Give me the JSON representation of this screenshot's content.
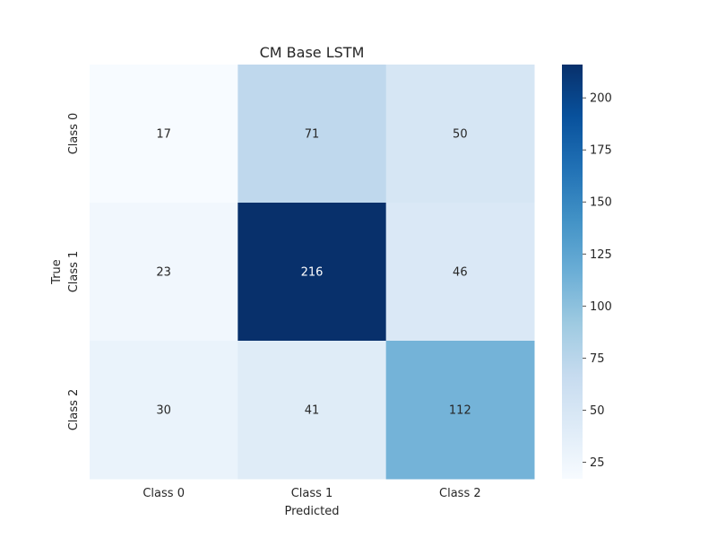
{
  "chart_data": {
    "type": "heatmap",
    "title": "CM Base LSTM",
    "xlabel": "Predicted",
    "ylabel": "True",
    "x_categories": [
      "Class 0",
      "Class 1",
      "Class 2"
    ],
    "y_categories": [
      "Class 0",
      "Class 1",
      "Class 2"
    ],
    "values": [
      [
        17,
        71,
        50
      ],
      [
        23,
        216,
        46
      ],
      [
        30,
        41,
        112
      ]
    ],
    "colormap": "Blues",
    "color_range": [
      17,
      216
    ],
    "colorbar_ticks": [
      25,
      50,
      75,
      100,
      125,
      150,
      175,
      200
    ]
  },
  "colors": {
    "text_dark": "#262626",
    "text_light": "#ffffff"
  }
}
